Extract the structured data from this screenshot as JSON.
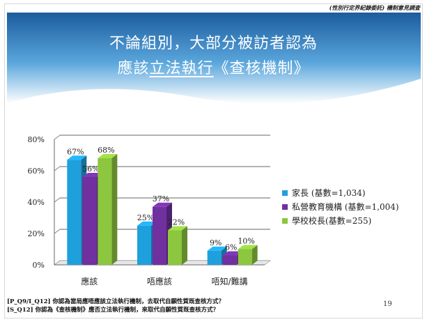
{
  "header": {
    "source": "(性別行定界紀錄委託) 機制意見調查"
  },
  "title": {
    "line1": "不論組別，大部分被訪者認為",
    "line2_before": "應該",
    "line2_underlined": "立法執行",
    "line2_after": "《查核機制》"
  },
  "colors": {
    "banner_top": "#1b5c9e",
    "banner_mid": "#5aa6dc",
    "banner_bottom": "#dff0fb",
    "grid": "#555555"
  },
  "chart_data": {
    "type": "bar",
    "categories": [
      "應該",
      "唔應該",
      "唔知/難講"
    ],
    "series": [
      {
        "name": "家長 (基數=1,034)",
        "values": [
          67,
          25,
          9
        ],
        "labels": [
          "67%",
          "25%",
          "9%"
        ],
        "color": "#1ea0dc"
      },
      {
        "name": "私營教育機構 (基數=1,004)",
        "values": [
          56,
          37,
          6
        ],
        "labels": [
          "56%",
          "37%",
          "6%"
        ],
        "color": "#7030a0"
      },
      {
        "name": "學校校長(基數=255)",
        "values": [
          68,
          22,
          10
        ],
        "labels": [
          "68%",
          "22%",
          "10%"
        ],
        "color": "#8dc63f"
      }
    ],
    "ylim": [
      0,
      80
    ],
    "yticks": [
      "0%",
      "20%",
      "40%",
      "60%",
      "80%"
    ],
    "legend_position": "right"
  },
  "footnote": {
    "q1_code": "[P_Q9/I_Q12]",
    "q1_text": "你認為當局應唔應該立法執行機制，去取代自願性質既查核方式？",
    "q2_code": "[S_Q12]",
    "q2_text": "你認為《查核機制》應否立法執行機制，來取代自願性質既查核方式？"
  },
  "page_number": "19"
}
